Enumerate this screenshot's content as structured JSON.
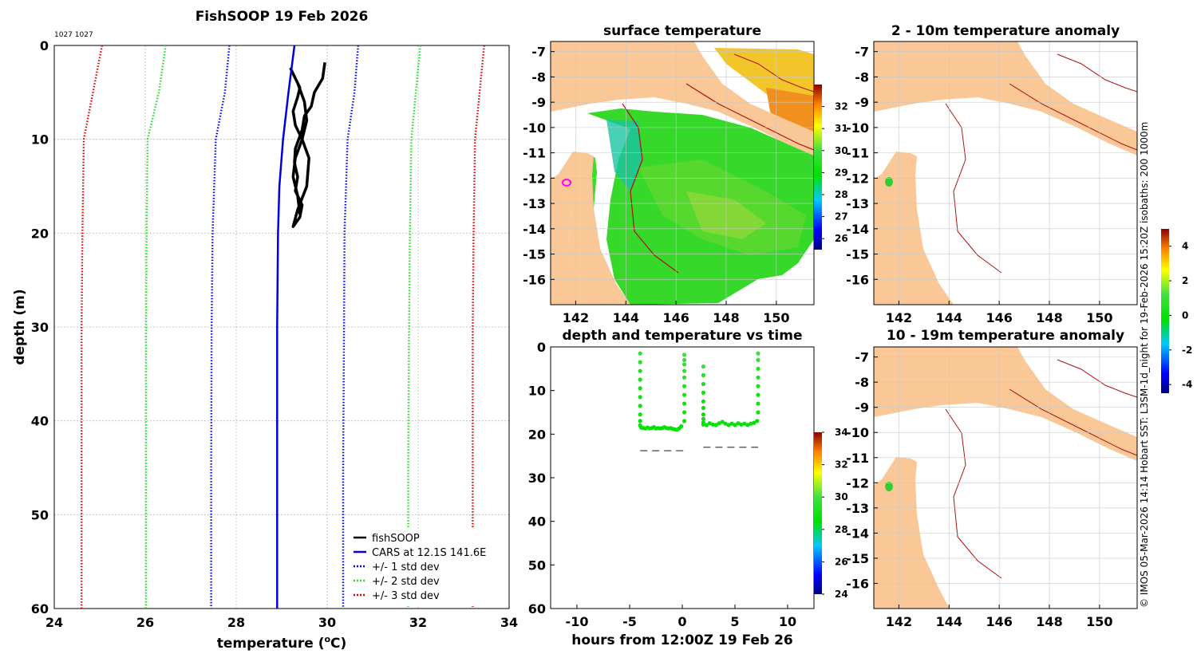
{
  "colors": {
    "fishsoop": "#000000",
    "cars": "#0000dd",
    "std1": "#0000ff",
    "std2": "#22dd22",
    "std3": "#dd0000",
    "land": "#f9c896",
    "isobath": "#b01010",
    "grid": "#b0b0b0"
  },
  "credit": "© IMOS 05-Mar-2026 14:14 Hobart SST: L3SM-1d_night for 19-Feb-2026 15:20Z isobaths: 200  1000m",
  "chart_data": [
    {
      "id": "profile",
      "type": "line",
      "title": "FishSOOP 19 Feb 2026",
      "subtitle": "1027 1027",
      "xlabel": "temperature (°C)",
      "xlabel_main": "temperature (",
      "xlabel_sup": "o",
      "xlabel_end": "C)",
      "ylabel": "depth (m)",
      "xlim": [
        24,
        34
      ],
      "ylim": [
        0,
        60
      ],
      "y_reversed": true,
      "xticks": [
        "24",
        "26",
        "28",
        "30",
        "32",
        "34"
      ],
      "yticks": [
        "0",
        "10",
        "20",
        "30",
        "40",
        "50",
        "60"
      ],
      "grid": true,
      "legend_position": "bottom-right",
      "legend": [
        "fishSOOP",
        "CARS at 12.1S 141.6E",
        "+/- 1 std dev",
        "+/- 2 std dev",
        "+/- 3 std dev"
      ],
      "series": [
        {
          "name": "fishSOOP",
          "style": "solid-thick",
          "color": "#000000",
          "x": [
            29.95,
            29.9,
            29.72,
            29.65,
            29.5,
            29.45,
            29.3,
            29.28,
            29.35,
            29.3,
            29.45,
            29.4,
            29.25,
            29.35,
            29.55,
            29.6,
            29.45,
            29.3,
            29.25,
            29.35,
            29.4,
            29.3,
            29.2,
            29.35,
            29.5,
            29.55,
            29.45,
            29.3,
            29.25,
            29.35,
            29.4
          ],
          "y": [
            1.8,
            3.5,
            5,
            6.5,
            7.5,
            9,
            11,
            12.5,
            14,
            15.5,
            17,
            18.3,
            19.3,
            17.5,
            15,
            12,
            10,
            8.5,
            7,
            5.5,
            4.5,
            3.5,
            2.5,
            4,
            6,
            8,
            10,
            12,
            14,
            16,
            18
          ]
        },
        {
          "name": "CARS at 12.1S 141.6E",
          "style": "solid",
          "color": "#0000dd",
          "x": [
            29.28,
            29.15,
            29.03,
            28.95,
            28.92,
            28.9,
            28.9,
            28.9
          ],
          "y": [
            0,
            5,
            10,
            15,
            20,
            30,
            45,
            60
          ]
        },
        {
          "name": "+1 std dev",
          "style": "dotted",
          "color": "#0000ff",
          "x": [
            30.68,
            30.6,
            30.45,
            30.38,
            30.37,
            30.35,
            30.35
          ],
          "y": [
            0,
            5,
            10,
            20,
            30,
            45,
            60
          ]
        },
        {
          "name": "-1 std dev",
          "style": "dotted",
          "color": "#0000ff",
          "x": [
            27.85,
            27.75,
            27.55,
            27.48,
            27.46,
            27.45,
            27.45
          ],
          "y": [
            0,
            5,
            10,
            20,
            30,
            45,
            60
          ]
        },
        {
          "name": "+2 std dev",
          "style": "dotted",
          "color": "#22dd22",
          "x": [
            32.05,
            31.95,
            31.85,
            31.82,
            31.8,
            31.78,
            31.78
          ],
          "y": [
            0,
            5,
            10,
            20,
            30,
            45,
            60
          ]
        },
        {
          "name": "-2 std dev",
          "style": "dotted",
          "color": "#22dd22",
          "x": [
            26.45,
            26.3,
            26.05,
            26.03,
            26.02,
            26.02,
            26.02
          ],
          "y": [
            0,
            5,
            10,
            20,
            30,
            45,
            60
          ]
        },
        {
          "name": "+3 std dev",
          "style": "dotted",
          "color": "#dd0000",
          "x": [
            33.45,
            33.35,
            33.25,
            33.22,
            33.2,
            33.2,
            33.2
          ],
          "y": [
            0,
            5,
            10,
            20,
            30,
            45,
            60
          ]
        },
        {
          "name": "-3 std dev",
          "style": "dotted",
          "color": "#dd0000",
          "x": [
            25.05,
            24.85,
            24.65,
            24.62,
            24.6,
            24.6,
            24.6
          ],
          "y": [
            0,
            5,
            10,
            20,
            30,
            45,
            60
          ]
        }
      ]
    },
    {
      "id": "surface",
      "type": "heatmap",
      "title": "surface temperature",
      "xlim": [
        141,
        151.5
      ],
      "ylim": [
        -17,
        -6.6
      ],
      "xticks": [
        "142",
        "144",
        "146",
        "148",
        "150"
      ],
      "yticks": [
        "-7",
        "-8",
        "-9",
        "-10",
        "-11",
        "-12",
        "-13",
        "-14",
        "-15",
        "-16"
      ],
      "colorbar": {
        "min": 25.5,
        "max": 33,
        "ticks": [
          "32",
          "31",
          "30",
          "29",
          "28",
          "27",
          "26"
        ]
      }
    },
    {
      "id": "anom1",
      "type": "heatmap",
      "title": "2 - 10m temperature anomaly",
      "xlim": [
        141,
        151.5
      ],
      "ylim": [
        -17,
        -6.6
      ],
      "xticks": [
        "142",
        "144",
        "146",
        "148",
        "150"
      ],
      "yticks": [
        "-7",
        "-8",
        "-9",
        "-10",
        "-11",
        "-12",
        "-13",
        "-14",
        "-15",
        "-16"
      ],
      "colorbar": {
        "min": -4.5,
        "max": 5,
        "ticks": [
          "4",
          "2",
          "0",
          "-2",
          "-4"
        ]
      }
    },
    {
      "id": "anom2",
      "type": "heatmap",
      "title": "10 - 19m temperature anomaly",
      "xlim": [
        141,
        151.5
      ],
      "ylim": [
        -17,
        -6.6
      ],
      "xticks": [
        "142",
        "144",
        "146",
        "148",
        "150"
      ],
      "yticks": [
        "-7",
        "-8",
        "-9",
        "-10",
        "-11",
        "-12",
        "-13",
        "-14",
        "-15",
        "-16"
      ]
    },
    {
      "id": "timeseries",
      "type": "scatter",
      "title": "depth and temperature vs time",
      "xlabel": "hours from 12:00Z 19 Feb 26",
      "xlim": [
        -12.5,
        12.5
      ],
      "ylim": [
        0,
        60
      ],
      "y_reversed": true,
      "xticks": [
        "-10",
        "-5",
        "0",
        "5",
        "10"
      ],
      "yticks": [
        "0",
        "10",
        "20",
        "30",
        "40",
        "50",
        "60"
      ],
      "colorbar": {
        "min": 24,
        "max": 34,
        "ticks": [
          "34",
          "32",
          "30",
          "28",
          "26",
          "24"
        ]
      },
      "series": [
        {
          "name": "set 1 depth",
          "x": [
            -4,
            -4,
            -4,
            -4,
            -4,
            -4,
            -4,
            -4,
            -4,
            -4,
            -3.9,
            -3.7,
            -3.5,
            -3.3,
            -3.1,
            -2.9,
            -2.7,
            -2.5,
            -2.3,
            -2.1,
            -1.9,
            -1.7,
            -1.5,
            -1.3,
            -1.1,
            -0.9,
            -0.7,
            -0.5,
            -0.3,
            -0.1,
            0.2,
            0.2,
            0.2,
            0.2,
            0.2,
            0.2,
            0.2,
            0.2,
            0.2,
            0.2
          ],
          "y": [
            1.5,
            3.5,
            5.5,
            7.5,
            9.5,
            11.5,
            13.5,
            15.5,
            17,
            18,
            18.5,
            18.6,
            18.7,
            18.5,
            18.7,
            18.6,
            18.4,
            18.7,
            18.6,
            18.7,
            18.6,
            18.4,
            18.6,
            18.7,
            18.6,
            18.8,
            18.9,
            19,
            18.7,
            18.2,
            17,
            15,
            13,
            11,
            9,
            7,
            5.5,
            4,
            3,
            1.8
          ],
          "temp": [
            29.6,
            29.4,
            29.3,
            29.2,
            29.0,
            28.9,
            28.8,
            28.8,
            28.7,
            28.7,
            28.7,
            28.7,
            28.7,
            28.7,
            28.7,
            28.7,
            28.7,
            28.7,
            28.7,
            28.7,
            28.7,
            28.7,
            28.7,
            28.7,
            28.7,
            28.7,
            28.7,
            28.7,
            28.7,
            28.7,
            28.8,
            28.9,
            29.0,
            29.1,
            29.3,
            29.5,
            29.6,
            29.7,
            29.8,
            29.9
          ]
        },
        {
          "name": "set 2 depth",
          "x": [
            2,
            2,
            2,
            2,
            2,
            2,
            2,
            2,
            2,
            2,
            2.3,
            2.6,
            2.9,
            3.2,
            3.5,
            3.8,
            4.1,
            4.4,
            4.7,
            5.0,
            5.3,
            5.6,
            5.9,
            6.2,
            6.5,
            6.8,
            7.1,
            7.2,
            7.2,
            7.2,
            7.2,
            7.2,
            7.2,
            7.2,
            7.2
          ],
          "y": [
            4.5,
            6.5,
            8.5,
            10.5,
            12.5,
            14,
            15.5,
            16.5,
            17.3,
            17.8,
            17.9,
            17.5,
            17.8,
            17.9,
            17.5,
            17.2,
            17.6,
            17.9,
            17.6,
            17.9,
            17.5,
            17.8,
            17.6,
            17.9,
            17.6,
            17.4,
            17,
            15,
            13,
            11,
            9,
            7,
            5,
            3,
            1.5
          ],
          "temp": [
            29.8,
            29.4,
            29.1,
            28.9,
            28.8,
            28.7,
            28.7,
            28.7,
            28.7,
            28.7,
            28.7,
            28.7,
            28.7,
            28.7,
            28.7,
            28.7,
            28.7,
            28.7,
            28.7,
            28.7,
            28.7,
            28.7,
            28.7,
            28.7,
            28.7,
            28.7,
            28.7,
            28.8,
            28.9,
            29.0,
            29.1,
            29.2,
            29.4,
            29.6,
            29.8
          ]
        },
        {
          "name": "bottom 1",
          "style": "dashed",
          "x": [
            -4,
            0.3
          ],
          "y": [
            23.8,
            23.8
          ]
        },
        {
          "name": "bottom 2",
          "style": "dashed",
          "x": [
            2,
            7.2
          ],
          "y": [
            23,
            23
          ]
        }
      ]
    }
  ]
}
